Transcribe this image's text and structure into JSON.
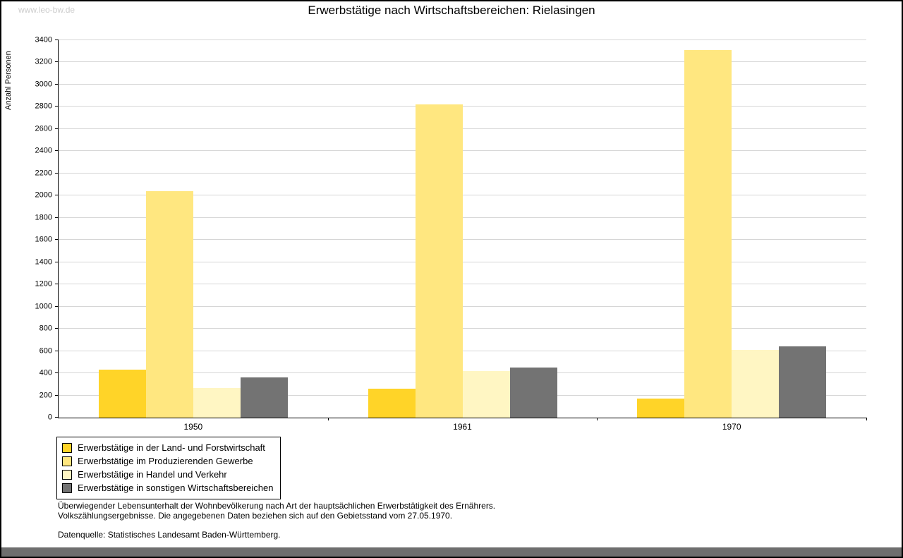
{
  "watermark": "www.leo-bw.de",
  "title": "Erwerbstätige nach Wirtschaftsbereichen: Rielasingen",
  "chart_data": {
    "type": "bar",
    "title": "Erwerbstätige nach Wirtschaftsbereichen: Rielasingen",
    "xlabel": "",
    "ylabel": "Anzahl Personen",
    "ylim": [
      0,
      3400
    ],
    "ytick_step": 200,
    "grid": true,
    "legend_position": "bottom-left",
    "categories": [
      "1950",
      "1961",
      "1970"
    ],
    "series": [
      {
        "name": "Erwerbstätige in der Land- und Forstwirtschaft",
        "color": "#ffd428",
        "values": [
          430,
          260,
          170
        ]
      },
      {
        "name": "Erwerbstätige im Produzierenden Gewerbe",
        "color": "#ffe780",
        "values": [
          2040,
          2820,
          3310
        ]
      },
      {
        "name": "Erwerbstätige in Handel und Verkehr",
        "color": "#fff6c3",
        "values": [
          270,
          420,
          610
        ]
      },
      {
        "name": "Erwerbstätige in sonstigen Wirtschaftsbereichen",
        "color": "#737373",
        "values": [
          360,
          450,
          640
        ]
      }
    ]
  },
  "footnotes": {
    "line1": "Überwiegender Lebensunterhalt der Wohnbevölkerung nach Art der hauptsächlichen Erwerbstätigkeit des Ernährers.",
    "line2": "Volkszählungsergebnisse. Die angegebenen Daten beziehen sich auf den Gebietsstand vom 27.05.1970.",
    "source": "Datenquelle: Statistisches Landesamt Baden-Württemberg."
  }
}
